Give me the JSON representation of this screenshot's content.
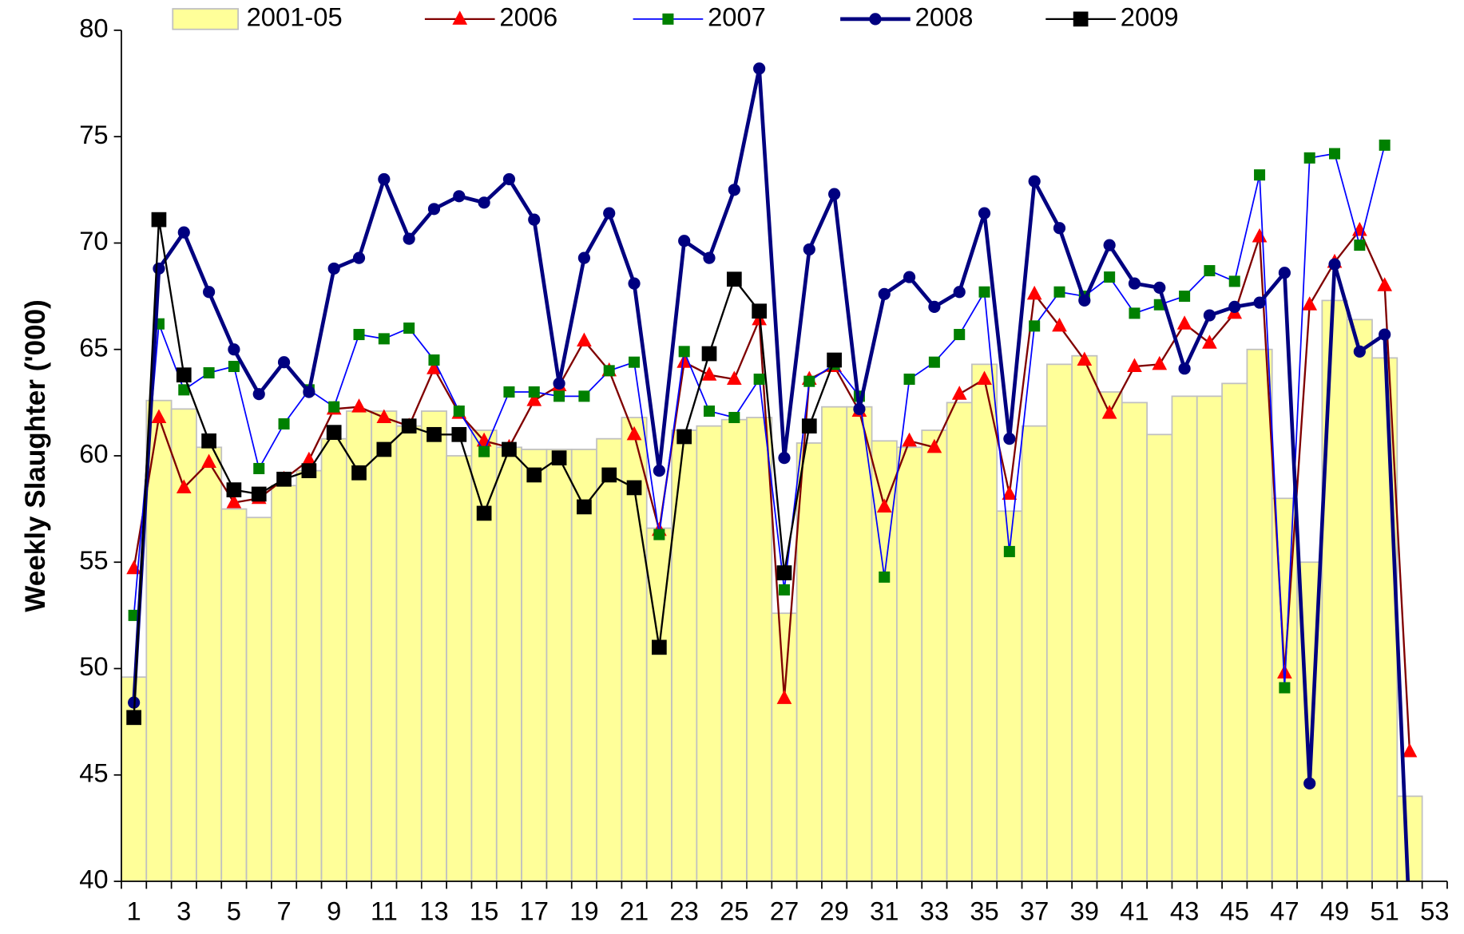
{
  "chart_data": {
    "type": "bar_line",
    "y_label": "Weekly Slaughter ('000)",
    "categories": [
      1,
      null,
      3,
      null,
      5,
      null,
      7,
      null,
      9,
      null,
      11,
      null,
      13,
      null,
      15,
      null,
      17,
      null,
      19,
      null,
      21,
      null,
      23,
      null,
      25,
      null,
      27,
      null,
      29,
      null,
      31,
      null,
      33,
      null,
      35,
      null,
      37,
      null,
      39,
      null,
      41,
      null,
      43,
      null,
      45,
      null,
      47,
      null,
      49,
      null,
      51,
      null,
      53
    ],
    "ylim": [
      40,
      80
    ],
    "yticks": [
      40,
      45,
      50,
      55,
      60,
      65,
      70,
      75,
      80
    ],
    "bars": {
      "name": "2001-05",
      "color": "#ffff99",
      "edge_color": "#c0c0c0",
      "values": [
        49.6,
        62.6,
        62.2,
        60.4,
        57.5,
        57.1,
        58.6,
        59.3,
        60.8,
        62.1,
        62.1,
        61.4,
        62.1,
        60.0,
        61.2,
        60.4,
        60.3,
        60.3,
        60.3,
        60.8,
        61.8,
        56.6,
        61.2,
        61.4,
        61.7,
        61.8,
        52.6,
        60.6,
        62.3,
        62.3,
        60.7,
        60.4,
        61.2,
        62.5,
        64.3,
        57.4,
        61.4,
        64.3,
        64.7,
        63.0,
        62.5,
        61.0,
        62.8,
        62.8,
        63.4,
        65.0,
        58.0,
        55.0,
        67.3,
        66.4,
        64.6,
        44.0,
        null
      ]
    },
    "series": [
      {
        "name": "2006",
        "color": "#800000",
        "marker": "triangle",
        "marker_color": "#ff0000",
        "width": 2,
        "values": [
          54.7,
          61.8,
          58.5,
          59.7,
          57.8,
          58.0,
          58.9,
          59.8,
          62.2,
          62.3,
          61.8,
          61.4,
          64.1,
          62.0,
          60.7,
          60.4,
          62.6,
          63.3,
          65.4,
          64.0,
          61.0,
          56.5,
          64.4,
          63.8,
          63.6,
          66.4,
          48.6,
          63.6,
          64.2,
          62.1,
          57.6,
          60.7,
          60.4,
          62.9,
          63.6,
          58.2,
          67.6,
          66.1,
          64.5,
          62.0,
          64.2,
          64.3,
          66.2,
          65.3,
          66.7,
          70.3,
          49.8,
          67.1,
          69.1,
          70.6,
          68.0,
          46.1,
          null
        ]
      },
      {
        "name": "2007",
        "color": "#0000ff",
        "marker": "square",
        "marker_color": "#008000",
        "width": 1.5,
        "values": [
          52.5,
          66.2,
          63.1,
          63.9,
          64.2,
          59.4,
          61.5,
          63.1,
          62.3,
          65.7,
          65.5,
          66.0,
          64.5,
          62.1,
          60.2,
          63.0,
          63.0,
          62.8,
          62.8,
          64.0,
          64.4,
          56.3,
          64.9,
          62.1,
          61.8,
          63.6,
          53.7,
          63.5,
          64.3,
          62.8,
          54.3,
          63.6,
          64.4,
          65.7,
          67.7,
          55.5,
          66.1,
          67.7,
          67.5,
          68.4,
          66.7,
          67.1,
          67.5,
          68.7,
          68.2,
          73.2,
          49.1,
          74.0,
          74.2,
          69.9,
          74.6,
          null,
          null
        ]
      },
      {
        "name": "2008",
        "color": "#000080",
        "marker": "circle",
        "marker_color": "#000080",
        "width": 4,
        "values": [
          48.4,
          68.8,
          70.5,
          67.7,
          65.0,
          62.9,
          64.4,
          63.0,
          68.8,
          69.3,
          73.0,
          70.2,
          71.6,
          72.2,
          71.9,
          73.0,
          71.1,
          63.4,
          69.3,
          71.4,
          68.1,
          59.3,
          70.1,
          69.3,
          72.5,
          78.2,
          59.9,
          69.7,
          72.3,
          62.2,
          67.6,
          68.4,
          67.0,
          67.7,
          71.4,
          60.8,
          72.9,
          70.7,
          67.3,
          69.9,
          68.1,
          67.9,
          64.1,
          66.6,
          67.0,
          67.2,
          68.6,
          44.6,
          69.0,
          64.9,
          65.7,
          38.0,
          null
        ]
      },
      {
        "name": "2009",
        "color": "#000000",
        "marker": "bigsquare",
        "marker_color": "#000000",
        "width": 2,
        "values": [
          47.7,
          71.1,
          63.8,
          60.7,
          58.4,
          58.2,
          58.9,
          59.3,
          61.1,
          59.2,
          60.3,
          61.4,
          61.0,
          61.0,
          57.3,
          60.3,
          59.1,
          59.9,
          57.6,
          59.1,
          58.5,
          51.0,
          60.9,
          64.8,
          68.3,
          66.8,
          54.5,
          61.4,
          64.5,
          null,
          null,
          null,
          null,
          null,
          null,
          null,
          null,
          null,
          null,
          null,
          null,
          null,
          null,
          null,
          null,
          null,
          null,
          null,
          null,
          null,
          null,
          null,
          null
        ]
      }
    ]
  }
}
